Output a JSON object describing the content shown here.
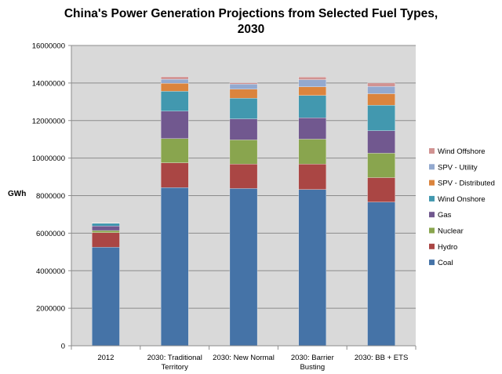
{
  "chart_data": {
    "type": "bar",
    "stacked": true,
    "title_lines": [
      "China's Power Generation Projections from Selected Fuel Types,",
      "2030"
    ],
    "ylabel": "GWh",
    "xlabel": "",
    "ylim": [
      0,
      16000000
    ],
    "yticks": [
      "0",
      "2000000",
      "4000000",
      "6000000",
      "8000000",
      "10000000",
      "12000000",
      "14000000",
      "16000000"
    ],
    "grid": true,
    "legend_position": "right",
    "categories": [
      [
        "2012"
      ],
      [
        "2030: Traditional",
        "Territory"
      ],
      [
        "2030: New Normal"
      ],
      [
        "2030: Barrier",
        "Busting"
      ],
      [
        "2030: BB + ETS"
      ]
    ],
    "series": [
      {
        "name": "Coal",
        "color": "#4573A7",
        "values": [
          5250000,
          8430000,
          8380000,
          8330000,
          7660000
        ]
      },
      {
        "name": "Hydro",
        "color": "#AA4644",
        "values": [
          780000,
          1320000,
          1300000,
          1350000,
          1300000
        ]
      },
      {
        "name": "Nuclear",
        "color": "#89A54E",
        "values": [
          110000,
          1290000,
          1290000,
          1330000,
          1300000
        ]
      },
      {
        "name": "Gas",
        "color": "#71588F",
        "values": [
          240000,
          1460000,
          1120000,
          1140000,
          1200000
        ]
      },
      {
        "name": "Wind Onshore",
        "color": "#4298AF",
        "values": [
          150000,
          1060000,
          1100000,
          1190000,
          1360000
        ]
      },
      {
        "name": "SPV - Distributed",
        "color": "#DB843D",
        "values": [
          10000,
          420000,
          480000,
          460000,
          610000
        ]
      },
      {
        "name": "SPV - Utility",
        "color": "#93A9CF",
        "values": [
          10000,
          220000,
          270000,
          380000,
          390000
        ]
      },
      {
        "name": "Wind Offshore",
        "color": "#D19392",
        "values": [
          5000,
          130000,
          70000,
          140000,
          180000
        ]
      }
    ],
    "plot_background": "#D9D9D9",
    "grid_color": "#8C8C8C"
  }
}
